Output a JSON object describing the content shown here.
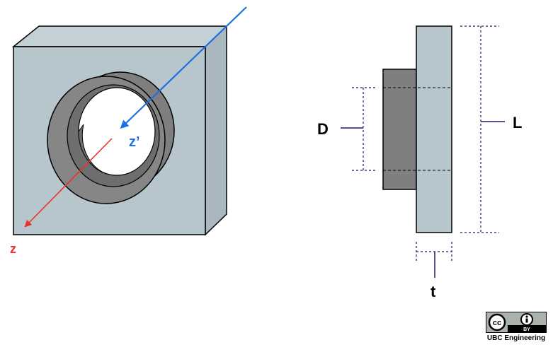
{
  "labels": {
    "z": "z",
    "z_prime": "z’",
    "D": "D",
    "L": "L",
    "t": "t"
  },
  "license": {
    "badge_cc": "cc",
    "badge_by": "BY",
    "credit": "UBC Engineering"
  },
  "colors": {
    "plate_face": "#b7c6cd",
    "plate_side": "#a9b8bf",
    "bushing": "#7f7f7f",
    "bushing_dark": "#6e6e6e",
    "z_axis": "#e8332a",
    "z_prime_axis": "#1f6fe0",
    "dimension_lines": "#1a1a66",
    "outline": "#000000"
  }
}
